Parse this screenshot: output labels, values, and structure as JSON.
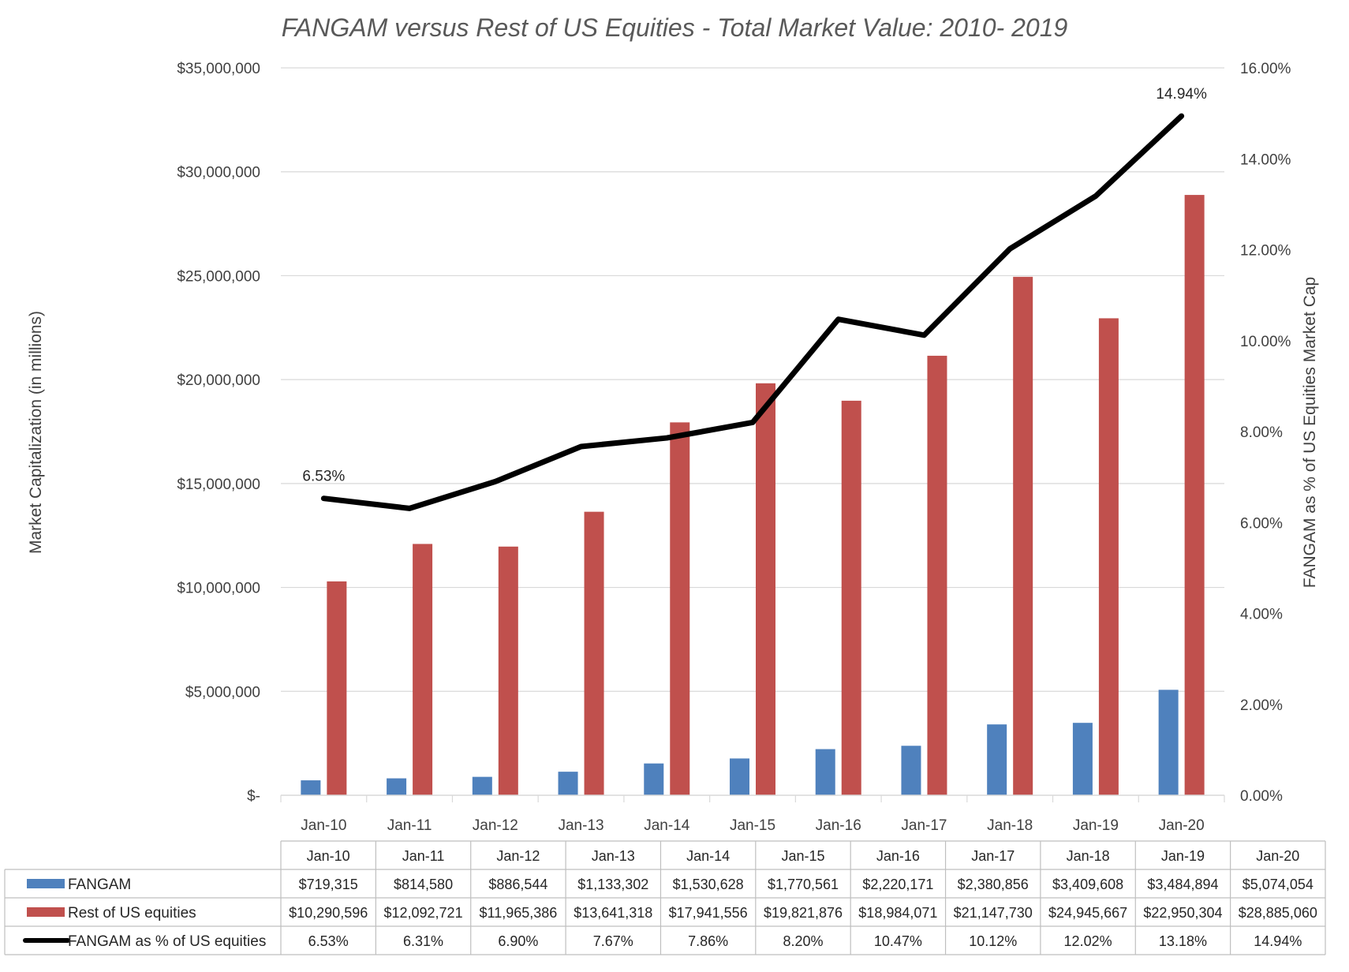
{
  "colors": {
    "fangam": "#4F81BD",
    "rest": "#C0504D",
    "line": "#000000",
    "grid": "#D9D9D9",
    "table_border": "#BFBFBF"
  },
  "chart_data": {
    "type": "bar",
    "title": "FANGAM versus Rest of US Equities - Total Market Value: 2010- 2019",
    "categories": [
      "Jan-10",
      "Jan-11",
      "Jan-12",
      "Jan-13",
      "Jan-14",
      "Jan-15",
      "Jan-16",
      "Jan-17",
      "Jan-18",
      "Jan-19",
      "Jan-20"
    ],
    "y_left": {
      "label": "Market Capitalization (in millions)",
      "range": [
        0,
        35000000
      ],
      "ticks": [
        0,
        5000000,
        10000000,
        15000000,
        20000000,
        25000000,
        30000000,
        35000000
      ],
      "tick_labels": [
        "$-",
        "$5,000,000",
        "$10,000,000",
        "$15,000,000",
        "$20,000,000",
        "$25,000,000",
        "$30,000,000",
        "$35,000,000"
      ]
    },
    "y_right": {
      "label": "FANGAM as % of US Equities Market Cap",
      "range": [
        0,
        16
      ],
      "ticks": [
        0,
        2,
        4,
        6,
        8,
        10,
        12,
        14,
        16
      ],
      "tick_labels": [
        "0.00%",
        "2.00%",
        "4.00%",
        "6.00%",
        "8.00%",
        "10.00%",
        "12.00%",
        "14.00%",
        "16.00%"
      ]
    },
    "grid": true,
    "series": [
      {
        "name": "FANGAM",
        "type": "bar",
        "axis": "left",
        "values": [
          719315,
          814580,
          886544,
          1133302,
          1530628,
          1770561,
          2220171,
          2380856,
          3409608,
          3484894,
          5074054
        ],
        "table_values": [
          "$719,315",
          "$814,580",
          "$886,544",
          "$1,133,302",
          "$1,530,628",
          "$1,770,561",
          "$2,220,171",
          "$2,380,856",
          "$3,409,608",
          "$3,484,894",
          "$5,074,054"
        ]
      },
      {
        "name": "Rest of US equities",
        "type": "bar",
        "axis": "left",
        "values": [
          10290596,
          12092721,
          11965386,
          13641318,
          17941556,
          19821876,
          18984071,
          21147730,
          24945667,
          22950304,
          28885060
        ],
        "table_values": [
          "$10,290,596",
          "$12,092,721",
          "$11,965,386",
          "$13,641,318",
          "$17,941,556",
          "$19,821,876",
          "$18,984,071",
          "$21,147,730",
          "$24,945,667",
          "$22,950,304",
          "$28,885,060"
        ]
      },
      {
        "name": "FANGAM as % of US equities",
        "type": "line",
        "axis": "right",
        "values": [
          6.53,
          6.31,
          6.9,
          7.67,
          7.86,
          8.2,
          10.47,
          10.12,
          12.02,
          13.18,
          14.94
        ],
        "table_values": [
          "6.53%",
          "6.31%",
          "6.90%",
          "7.67%",
          "7.86%",
          "8.20%",
          "10.47%",
          "10.12%",
          "12.02%",
          "13.18%",
          "14.94%"
        ]
      }
    ],
    "annotations": [
      {
        "series": 2,
        "index": 0,
        "text": "6.53%"
      },
      {
        "series": 2,
        "index": 10,
        "text": "14.94%"
      }
    ]
  }
}
